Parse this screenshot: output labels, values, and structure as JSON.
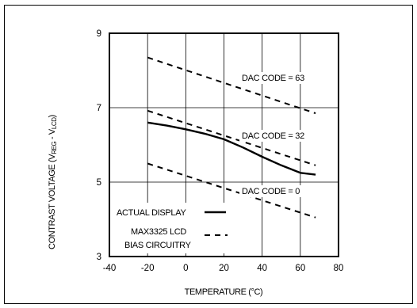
{
  "chart_data": {
    "type": "line",
    "title": "",
    "xlabel": "TEMPERATURE (°C)",
    "ylabel_main": "CONTRAST VOLTAGE (V",
    "ylabel_sub1": "REG",
    "ylabel_mid": " - V",
    "ylabel_sub2": "LCD",
    "ylabel_end": ")",
    "xlim": [
      -40,
      80
    ],
    "ylim": [
      3,
      9
    ],
    "xticks": [
      -40,
      -20,
      0,
      20,
      40,
      60,
      80
    ],
    "yticks": [
      3,
      5,
      7,
      9
    ],
    "grid": true,
    "series": [
      {
        "name": "ACTUAL DISPLAY",
        "style": "solid",
        "x": [
          -20,
          -10,
          0,
          10,
          20,
          30,
          40,
          50,
          60,
          68
        ],
        "y": [
          6.6,
          6.52,
          6.42,
          6.3,
          6.15,
          5.93,
          5.68,
          5.45,
          5.25,
          5.2
        ]
      },
      {
        "name": "DAC CODE = 63",
        "style": "dashed",
        "x": [
          -20,
          68
        ],
        "y": [
          8.35,
          6.85
        ]
      },
      {
        "name": "DAC CODE = 32",
        "style": "dashed",
        "x": [
          -20,
          68
        ],
        "y": [
          6.92,
          5.45
        ]
      },
      {
        "name": "DAC CODE = 0",
        "style": "dashed",
        "x": [
          -20,
          68
        ],
        "y": [
          5.5,
          4.05
        ]
      }
    ],
    "annotations": {
      "dac63": "DAC CODE = 63",
      "dac32": "DAC CODE = 32",
      "dac0": "DAC CODE = 0"
    },
    "legend": {
      "placement": "bottom-left",
      "actual_label": "ACTUAL DISPLAY",
      "bias_label_1": "MAX3325 LCD",
      "bias_label_2": "BIAS CIRCUITRY"
    }
  }
}
